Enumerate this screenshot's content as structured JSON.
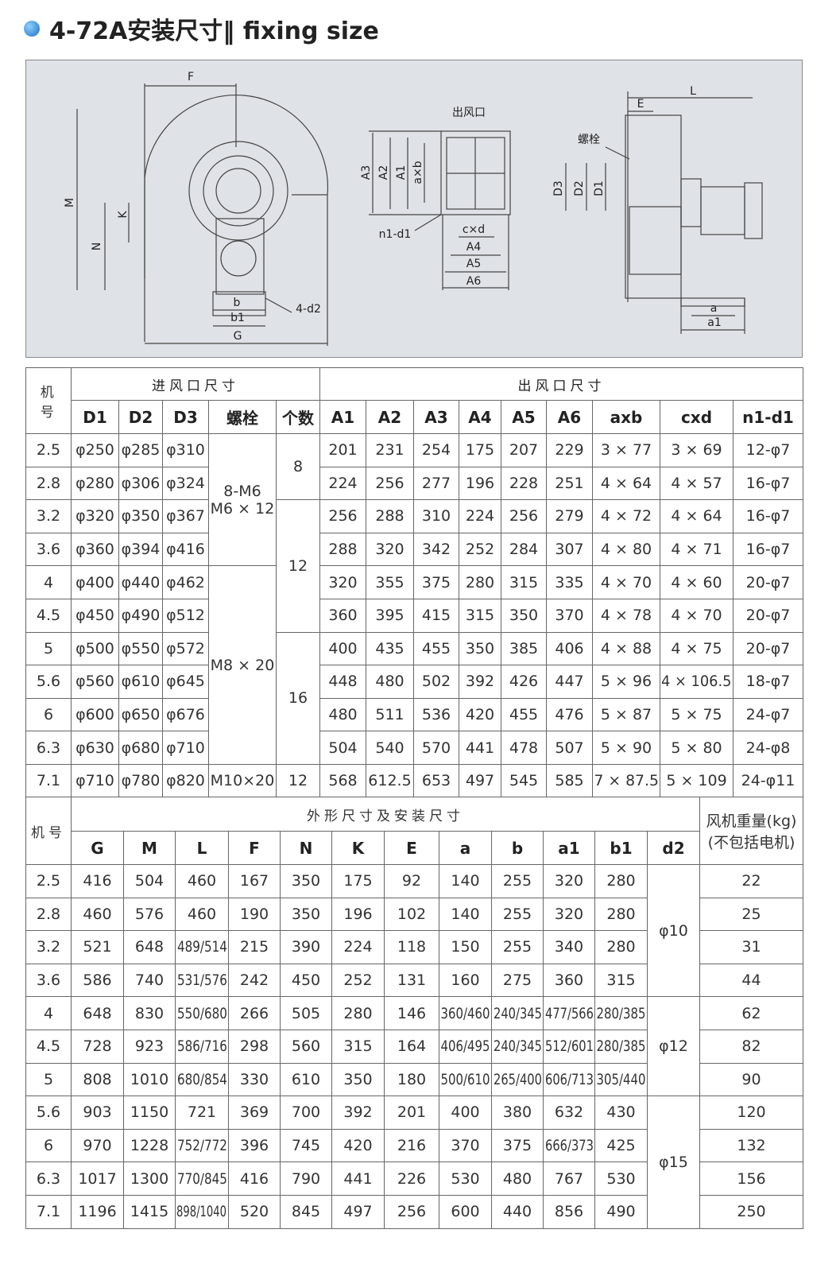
{
  "header": {
    "title": "4-72A安装尺寸‖ fixing size"
  },
  "diagram": {
    "labels": [
      "F",
      "M",
      "N",
      "K",
      "b",
      "b1",
      "G",
      "4-d2",
      "出风口",
      "A3",
      "A2",
      "A1",
      "a×b",
      "n1-d1",
      "c×d",
      "A4",
      "A5",
      "A6",
      "L",
      "E",
      "螺栓",
      "D3",
      "D2",
      "D1",
      "a",
      "a1"
    ]
  },
  "table1": {
    "id_header": "机号",
    "inlet_header": "进风口尺寸",
    "outlet_header": "出风口尺寸",
    "columns": [
      "D1",
      "D2",
      "D3",
      "螺栓",
      "个数",
      "A1",
      "A2",
      "A3",
      "A4",
      "A5",
      "A6",
      "axb",
      "cxd",
      "n1-d1"
    ],
    "rows": [
      [
        2.5,
        "φ250",
        "φ285",
        "φ310",
        [
          "8-M6",
          "M6 × 12"
        ],
        8,
        201,
        231,
        254,
        175,
        207,
        229,
        "3 × 77",
        "3 × 69",
        "12-φ7"
      ],
      [
        2.8,
        "φ280",
        "φ306",
        "φ324",
        null,
        null,
        224,
        256,
        277,
        196,
        228,
        251,
        "4 × 64",
        "4 × 57",
        "16-φ7"
      ],
      [
        3.2,
        "φ320",
        "φ350",
        "φ367",
        null,
        12,
        256,
        288,
        310,
        224,
        256,
        279,
        "4 × 72",
        "4 × 64",
        "16-φ7"
      ],
      [
        3.6,
        "φ360",
        "φ394",
        "φ416",
        null,
        null,
        288,
        320,
        342,
        252,
        284,
        307,
        "4 × 80",
        "4 × 71",
        "16-φ7"
      ],
      [
        4,
        "φ400",
        "φ440",
        "φ462",
        "M8 × 20",
        null,
        320,
        355,
        375,
        280,
        315,
        335,
        "4 × 70",
        "4 × 60",
        "20-φ7"
      ],
      [
        4.5,
        "φ450",
        "φ490",
        "φ512",
        null,
        null,
        360,
        395,
        415,
        315,
        350,
        370,
        "4 × 78",
        "4 × 70",
        "20-φ7"
      ],
      [
        5,
        "φ500",
        "φ550",
        "φ572",
        null,
        16,
        400,
        435,
        455,
        350,
        385,
        406,
        "4 × 88",
        "4 × 75",
        "20-φ7"
      ],
      [
        5.6,
        "φ560",
        "φ610",
        "φ645",
        null,
        null,
        448,
        480,
        502,
        392,
        426,
        447,
        "5 × 96",
        "4 × 106.5",
        "18-φ7"
      ],
      [
        6,
        "φ600",
        "φ650",
        "φ676",
        null,
        null,
        480,
        511,
        536,
        420,
        455,
        476,
        "5 × 87",
        "5 × 75",
        "24-φ7"
      ],
      [
        6.3,
        "φ630",
        "φ680",
        "φ710",
        null,
        null,
        504,
        540,
        570,
        441,
        478,
        507,
        "5 × 90",
        "5 × 80",
        "24-φ8"
      ],
      [
        7.1,
        "φ710",
        "φ780",
        "φ820",
        "M10×20",
        12,
        568,
        612.5,
        653,
        497,
        545,
        585,
        "7 × 87.5",
        "5 × 109",
        "24-φ11"
      ]
    ]
  },
  "table2": {
    "id_header": "机号",
    "group_header": "外形尺寸及安装尺寸",
    "weight_header": [
      "风机重量(kg)",
      "(不包括电机)"
    ],
    "columns": [
      "G",
      "M",
      "L",
      "F",
      "N",
      "K",
      "E",
      "a",
      "b",
      "a1",
      "b1",
      "d2"
    ],
    "rows": [
      [
        2.5,
        416,
        504,
        460,
        167,
        350,
        175,
        92,
        140,
        255,
        320,
        280,
        "φ10",
        22
      ],
      [
        2.8,
        460,
        576,
        460,
        190,
        350,
        196,
        102,
        140,
        255,
        320,
        280,
        null,
        25
      ],
      [
        3.2,
        521,
        648,
        "489/514",
        215,
        390,
        224,
        118,
        150,
        255,
        340,
        280,
        null,
        31
      ],
      [
        3.6,
        586,
        740,
        "531/576",
        242,
        450,
        252,
        131,
        160,
        275,
        360,
        315,
        null,
        44
      ],
      [
        4,
        648,
        830,
        "550/680",
        266,
        505,
        280,
        146,
        "360/460",
        "240/345",
        "477/566",
        "280/385",
        "φ12",
        62
      ],
      [
        4.5,
        728,
        923,
        "586/716",
        298,
        560,
        315,
        164,
        "406/495",
        "240/345",
        "512/601",
        "280/385",
        null,
        82
      ],
      [
        5,
        808,
        1010,
        "680/854",
        330,
        610,
        350,
        180,
        "500/610",
        "265/400",
        "606/713",
        "305/440",
        null,
        90
      ],
      [
        5.6,
        903,
        1150,
        721,
        369,
        700,
        392,
        201,
        400,
        380,
        632,
        430,
        "φ15",
        120
      ],
      [
        6,
        970,
        1228,
        "752/772",
        396,
        745,
        420,
        216,
        370,
        375,
        "666/373",
        425,
        null,
        132
      ],
      [
        6.3,
        1017,
        1300,
        "770/845",
        416,
        790,
        441,
        226,
        530,
        480,
        767,
        530,
        null,
        156
      ],
      [
        7.1,
        1196,
        1415,
        "898/1040",
        520,
        845,
        497,
        256,
        600,
        440,
        856,
        490,
        null,
        250
      ]
    ]
  }
}
